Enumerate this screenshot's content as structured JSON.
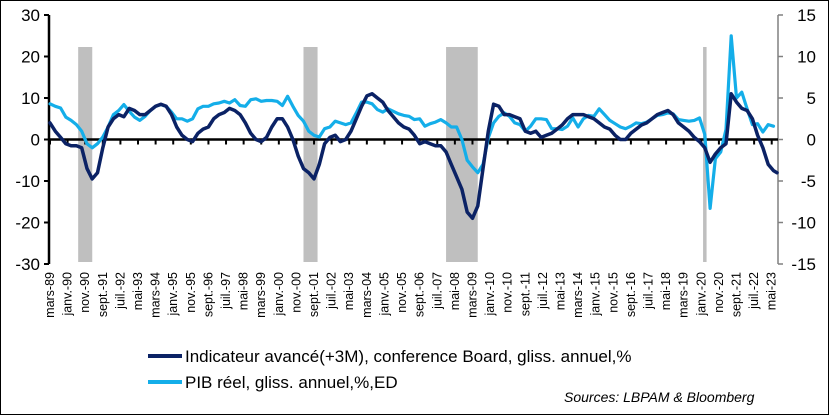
{
  "chart_data": {
    "type": "line",
    "title": "",
    "xlabel": "",
    "ylabel_left": "",
    "ylabel_right": "",
    "start": "1989-03",
    "end": "2023-08",
    "left_axis": {
      "ylim": [
        -30,
        30
      ],
      "ticks": [
        30,
        20,
        10,
        0,
        -10,
        -20,
        -30
      ]
    },
    "right_axis": {
      "ylim": [
        -15,
        15
      ],
      "ticks": [
        15,
        10,
        5,
        0,
        -5,
        -10,
        -15
      ]
    },
    "x_tick_labels": [
      "mars-89",
      "janv.-90",
      "nov.-90",
      "sept.-91",
      "juil.-92",
      "mai-93",
      "mars-94",
      "janv.-95",
      "nov.-95",
      "sept.-96",
      "juil.-97",
      "mai-98",
      "mars-99",
      "janv.-00",
      "nov.-00",
      "sept.-01",
      "juil.-02",
      "mai-03",
      "mars-04",
      "janv.-05",
      "nov.-05",
      "sept.-06",
      "juil.-07",
      "mai-08",
      "mars-09",
      "janv.-10",
      "nov.-10",
      "sept.-11",
      "juil.-12",
      "mai-13",
      "mars-14",
      "janv.-15",
      "nov.-15",
      "sept.-16",
      "juil.-17",
      "mai-18",
      "mars-19",
      "janv.-20",
      "nov.-20",
      "sept.-21",
      "juil.-22",
      "mai-23"
    ],
    "recessions": [
      {
        "start": "1990-07",
        "end": "1991-03"
      },
      {
        "start": "2001-03",
        "end": "2001-11"
      },
      {
        "start": "2007-12",
        "end": "2009-06"
      },
      {
        "start": "2020-02",
        "end": "2020-04"
      }
    ],
    "grid": false,
    "zero_line": true,
    "legend_position": "bottom",
    "series": [
      {
        "name": "Indicateur avancé(+3M), conference Board, gliss. annuel,%",
        "axis": "left",
        "color": "#0b2265",
        "points": [
          [
            "1989-03",
            4
          ],
          [
            "1989-06",
            2
          ],
          [
            "1989-09",
            0.5
          ],
          [
            "1989-12",
            -1
          ],
          [
            "1990-03",
            -1.5
          ],
          [
            "1990-06",
            -1.5
          ],
          [
            "1990-09",
            -2
          ],
          [
            "1990-12",
            -7
          ],
          [
            "1991-03",
            -9.5
          ],
          [
            "1991-06",
            -8
          ],
          [
            "1991-09",
            -2
          ],
          [
            "1991-12",
            3
          ],
          [
            "1992-03",
            5
          ],
          [
            "1992-06",
            6
          ],
          [
            "1992-09",
            5.5
          ],
          [
            "1992-12",
            7.5
          ],
          [
            "1993-03",
            7
          ],
          [
            "1993-06",
            6
          ],
          [
            "1993-09",
            6
          ],
          [
            "1993-12",
            7
          ],
          [
            "1994-03",
            8
          ],
          [
            "1994-06",
            8.5
          ],
          [
            "1994-09",
            8
          ],
          [
            "1994-12",
            6
          ],
          [
            "1995-03",
            3
          ],
          [
            "1995-06",
            1
          ],
          [
            "1995-09",
            0
          ],
          [
            "1995-12",
            -0.5
          ],
          [
            "1996-03",
            1.5
          ],
          [
            "1996-06",
            2.5
          ],
          [
            "1996-09",
            3
          ],
          [
            "1996-12",
            5
          ],
          [
            "1997-03",
            6
          ],
          [
            "1997-06",
            6.5
          ],
          [
            "1997-09",
            7.5
          ],
          [
            "1997-12",
            7
          ],
          [
            "1998-03",
            6
          ],
          [
            "1998-06",
            4
          ],
          [
            "1998-09",
            1.5
          ],
          [
            "1998-12",
            0
          ],
          [
            "1999-03",
            -0.5
          ],
          [
            "1999-06",
            0.5
          ],
          [
            "1999-09",
            3
          ],
          [
            "1999-12",
            5
          ],
          [
            "2000-03",
            5
          ],
          [
            "2000-06",
            3
          ],
          [
            "2000-09",
            0
          ],
          [
            "2000-12",
            -4
          ],
          [
            "2001-03",
            -7
          ],
          [
            "2001-06",
            -8
          ],
          [
            "2001-09",
            -9.5
          ],
          [
            "2001-12",
            -6
          ],
          [
            "2002-03",
            -1
          ],
          [
            "2002-06",
            0.5
          ],
          [
            "2002-09",
            1
          ],
          [
            "2002-12",
            -0.5
          ],
          [
            "2003-03",
            0
          ],
          [
            "2003-06",
            2
          ],
          [
            "2003-09",
            5
          ],
          [
            "2003-12",
            8
          ],
          [
            "2004-03",
            10.5
          ],
          [
            "2004-06",
            11
          ],
          [
            "2004-09",
            10
          ],
          [
            "2004-12",
            9
          ],
          [
            "2005-03",
            7
          ],
          [
            "2005-06",
            5.5
          ],
          [
            "2005-09",
            4
          ],
          [
            "2005-12",
            3
          ],
          [
            "2006-03",
            2.5
          ],
          [
            "2006-06",
            1
          ],
          [
            "2006-09",
            -1
          ],
          [
            "2006-12",
            -0.5
          ],
          [
            "2007-03",
            -1
          ],
          [
            "2007-06",
            -1.5
          ],
          [
            "2007-09",
            -1.5
          ],
          [
            "2007-12",
            -3
          ],
          [
            "2008-03",
            -6
          ],
          [
            "2008-06",
            -9
          ],
          [
            "2008-09",
            -12
          ],
          [
            "2008-12",
            -17.5
          ],
          [
            "2009-03",
            -19
          ],
          [
            "2009-06",
            -16
          ],
          [
            "2009-09",
            -7
          ],
          [
            "2009-12",
            2
          ],
          [
            "2010-03",
            8.5
          ],
          [
            "2010-06",
            8
          ],
          [
            "2010-09",
            6
          ],
          [
            "2010-12",
            6
          ],
          [
            "2011-03",
            5.5
          ],
          [
            "2011-06",
            5
          ],
          [
            "2011-09",
            2
          ],
          [
            "2011-12",
            1.5
          ],
          [
            "2012-03",
            2
          ],
          [
            "2012-06",
            0.5
          ],
          [
            "2012-09",
            1
          ],
          [
            "2012-12",
            1.5
          ],
          [
            "2013-03",
            2.5
          ],
          [
            "2013-06",
            3.5
          ],
          [
            "2013-09",
            5
          ],
          [
            "2013-12",
            6
          ],
          [
            "2014-03",
            6
          ],
          [
            "2014-06",
            6
          ],
          [
            "2014-09",
            5.5
          ],
          [
            "2014-12",
            5
          ],
          [
            "2015-03",
            4
          ],
          [
            "2015-06",
            3
          ],
          [
            "2015-09",
            2.5
          ],
          [
            "2015-12",
            1
          ],
          [
            "2016-03",
            0
          ],
          [
            "2016-06",
            0
          ],
          [
            "2016-09",
            1.5
          ],
          [
            "2016-12",
            2.5
          ],
          [
            "2017-03",
            3.5
          ],
          [
            "2017-06",
            4
          ],
          [
            "2017-09",
            5
          ],
          [
            "2017-12",
            6
          ],
          [
            "2018-03",
            6.5
          ],
          [
            "2018-06",
            7
          ],
          [
            "2018-09",
            6
          ],
          [
            "2018-12",
            4
          ],
          [
            "2019-03",
            3
          ],
          [
            "2019-06",
            2
          ],
          [
            "2019-09",
            0.5
          ],
          [
            "2019-12",
            -0.5
          ],
          [
            "2020-03",
            -2
          ],
          [
            "2020-06",
            -5.5
          ],
          [
            "2020-09",
            -3.5
          ],
          [
            "2020-12",
            -2
          ],
          [
            "2021-03",
            -1
          ],
          [
            "2021-06",
            11
          ],
          [
            "2021-09",
            9
          ],
          [
            "2021-12",
            7.5
          ],
          [
            "2022-03",
            7
          ],
          [
            "2022-06",
            5
          ],
          [
            "2022-09",
            1
          ],
          [
            "2022-12",
            -2
          ],
          [
            "2023-03",
            -6
          ],
          [
            "2023-06",
            -7.5
          ],
          [
            "2023-08",
            -8
          ]
        ]
      },
      {
        "name": "PIB réel, gliss. annuel,%,ED",
        "axis": "right",
        "color": "#14aee9",
        "points": [
          [
            "1989-03",
            4.3
          ],
          [
            "1989-06",
            4
          ],
          [
            "1989-09",
            3.8
          ],
          [
            "1989-12",
            2.7
          ],
          [
            "1990-03",
            2.3
          ],
          [
            "1990-06",
            1.8
          ],
          [
            "1990-09",
            1
          ],
          [
            "1990-12",
            -0.5
          ],
          [
            "1991-03",
            -1
          ],
          [
            "1991-06",
            -0.5
          ],
          [
            "1991-09",
            0.3
          ],
          [
            "1991-12",
            1.5
          ],
          [
            "1992-03",
            3
          ],
          [
            "1992-06",
            3.5
          ],
          [
            "1992-09",
            4.2
          ],
          [
            "1992-12",
            3.4
          ],
          [
            "1993-03",
            2.7
          ],
          [
            "1993-06",
            2.3
          ],
          [
            "1993-09",
            2.8
          ],
          [
            "1993-12",
            3.5
          ],
          [
            "1994-03",
            4
          ],
          [
            "1994-06",
            4.2
          ],
          [
            "1994-09",
            4
          ],
          [
            "1994-12",
            3.3
          ],
          [
            "1995-03",
            2.5
          ],
          [
            "1995-06",
            2.5
          ],
          [
            "1995-09",
            2.2
          ],
          [
            "1995-12",
            2.5
          ],
          [
            "1996-03",
            3.7
          ],
          [
            "1996-06",
            4
          ],
          [
            "1996-09",
            4
          ],
          [
            "1996-12",
            4.3
          ],
          [
            "1997-03",
            4.4
          ],
          [
            "1997-06",
            4.6
          ],
          [
            "1997-09",
            4.4
          ],
          [
            "1997-12",
            4.8
          ],
          [
            "1998-03",
            4.1
          ],
          [
            "1998-06",
            4
          ],
          [
            "1998-09",
            4.8
          ],
          [
            "1998-12",
            4.9
          ],
          [
            "1999-03",
            4.6
          ],
          [
            "1999-06",
            4.7
          ],
          [
            "1999-09",
            4.7
          ],
          [
            "1999-12",
            4.6
          ],
          [
            "2000-03",
            4.1
          ],
          [
            "2000-06",
            5.2
          ],
          [
            "2000-09",
            4
          ],
          [
            "2000-12",
            2.9
          ],
          [
            "2001-03",
            2.2
          ],
          [
            "2001-06",
            1
          ],
          [
            "2001-09",
            0.5
          ],
          [
            "2001-12",
            0.3
          ],
          [
            "2002-03",
            1.3
          ],
          [
            "2002-06",
            1.5
          ],
          [
            "2002-09",
            2.2
          ],
          [
            "2002-12",
            2
          ],
          [
            "2003-03",
            1.8
          ],
          [
            "2003-06",
            2
          ],
          [
            "2003-09",
            3.2
          ],
          [
            "2003-12",
            4.5
          ],
          [
            "2004-03",
            4.5
          ],
          [
            "2004-06",
            4.3
          ],
          [
            "2004-09",
            3.6
          ],
          [
            "2004-12",
            3.3
          ],
          [
            "2005-03",
            3.7
          ],
          [
            "2005-06",
            3.4
          ],
          [
            "2005-09",
            3.1
          ],
          [
            "2005-12",
            2.9
          ],
          [
            "2006-03",
            2.8
          ],
          [
            "2006-06",
            2.4
          ],
          [
            "2006-09",
            2.5
          ],
          [
            "2006-12",
            1.6
          ],
          [
            "2007-03",
            1.9
          ],
          [
            "2007-06",
            2.1
          ],
          [
            "2007-09",
            2.4
          ],
          [
            "2007-12",
            2
          ],
          [
            "2008-03",
            1.5
          ],
          [
            "2008-06",
            1.5
          ],
          [
            "2008-09",
            0
          ],
          [
            "2008-12",
            -2.5
          ],
          [
            "2009-03",
            -3.3
          ],
          [
            "2009-06",
            -4
          ],
          [
            "2009-09",
            -3
          ],
          [
            "2009-12",
            0.2
          ],
          [
            "2010-03",
            2
          ],
          [
            "2010-06",
            2.8
          ],
          [
            "2010-09",
            3.2
          ],
          [
            "2010-12",
            2.8
          ],
          [
            "2011-03",
            2
          ],
          [
            "2011-06",
            1.8
          ],
          [
            "2011-09",
            1
          ],
          [
            "2011-12",
            1.6
          ],
          [
            "2012-03",
            2.5
          ],
          [
            "2012-06",
            2.5
          ],
          [
            "2012-09",
            2.4
          ],
          [
            "2012-12",
            1.3
          ],
          [
            "2013-03",
            1.3
          ],
          [
            "2013-06",
            1.2
          ],
          [
            "2013-09",
            1.6
          ],
          [
            "2013-12",
            2.6
          ],
          [
            "2014-03",
            1.5
          ],
          [
            "2014-06",
            2.5
          ],
          [
            "2014-09",
            2.9
          ],
          [
            "2014-12",
            2.8
          ],
          [
            "2015-03",
            3.7
          ],
          [
            "2015-06",
            3
          ],
          [
            "2015-09",
            2.3
          ],
          [
            "2015-12",
            1.9
          ],
          [
            "2016-03",
            1.5
          ],
          [
            "2016-06",
            1.3
          ],
          [
            "2016-09",
            1.6
          ],
          [
            "2016-12",
            2
          ],
          [
            "2017-03",
            1.9
          ],
          [
            "2017-06",
            2.1
          ],
          [
            "2017-09",
            2.5
          ],
          [
            "2017-12",
            2.9
          ],
          [
            "2018-03",
            3
          ],
          [
            "2018-06",
            3.2
          ],
          [
            "2018-09",
            3.1
          ],
          [
            "2018-12",
            2.4
          ],
          [
            "2019-03",
            2.3
          ],
          [
            "2019-06",
            2.2
          ],
          [
            "2019-09",
            2.3
          ],
          [
            "2019-12",
            2.6
          ],
          [
            "2020-03",
            0.6
          ],
          [
            "2020-06",
            -8.3
          ],
          [
            "2020-09",
            -2.3
          ],
          [
            "2020-12",
            -1.5
          ],
          [
            "2021-03",
            1.2
          ],
          [
            "2021-06",
            12.5
          ],
          [
            "2021-09",
            5
          ],
          [
            "2021-12",
            5.7
          ],
          [
            "2022-03",
            3.7
          ],
          [
            "2022-06",
            1.8
          ],
          [
            "2022-09",
            1.9
          ],
          [
            "2022-12",
            0.9
          ],
          [
            "2023-03",
            1.8
          ],
          [
            "2023-06",
            1.6
          ]
        ]
      }
    ]
  },
  "legend": {
    "items": [
      {
        "label": "Indicateur avancé(+3M), conference Board, gliss. annuel,%",
        "color": "#0b2265"
      },
      {
        "label": "PIB réel, gliss. annuel,%,ED",
        "color": "#14aee9"
      }
    ]
  },
  "source": "Sources: LBPAM & Bloomberg",
  "colors": {
    "recession_bar": "#bfbfbf",
    "left_axis": "#000000",
    "right_axis": "#808080"
  }
}
